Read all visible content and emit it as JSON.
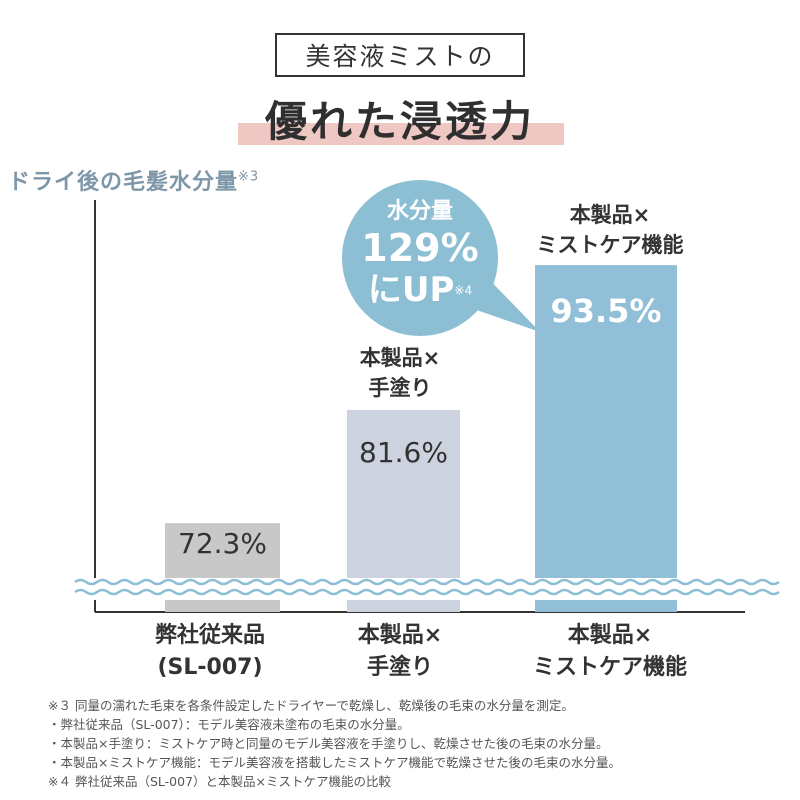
{
  "header": {
    "tag": "美容液ミストの",
    "headline": "優れた浸透力"
  },
  "axis": {
    "ylabel": "ドライ後の毛髪水分量",
    "ylabel_note": "※3"
  },
  "bubble": {
    "line1": "水分量",
    "line2": "129%",
    "line3": "にUP",
    "note": "※4",
    "color": "#8cbfd4"
  },
  "colors": {
    "bar1": "#c8c8c8",
    "bar2": "#cdd3de",
    "bar3": "#91bfd8",
    "wave": "#8cbfd4",
    "axis": "#333333",
    "underline": "#efc8c4"
  },
  "chart_data": {
    "type": "bar",
    "categories": [
      "弊社従来品 (SL-007)",
      "本製品×手塗り",
      "本製品×ミストケア機能"
    ],
    "values": [
      72.3,
      81.6,
      93.5
    ],
    "value_labels": [
      "72.3%",
      "81.6%",
      "93.5%"
    ],
    "ylabel": "ドライ後の毛髪水分量※3",
    "ylim": [
      65,
      100
    ],
    "grid": false,
    "bar_top_labels": [
      "",
      "本製品×\n手塗り",
      "本製品×\nミストケア機能"
    ]
  },
  "labels": {
    "bar2_top_1": "本製品×",
    "bar2_top_2": "手塗り",
    "bar3_top_1": "本製品×",
    "bar3_top_2": "ミストケア機能",
    "cat1_1": "弊社従来品",
    "cat1_2": "(SL-007)",
    "cat2_1": "本製品×",
    "cat2_2": "手塗り",
    "cat3_1": "本製品×",
    "cat3_2": "ミストケア機能"
  },
  "notes": [
    "※３ 同量の濡れた毛束を各条件設定したドライヤーで乾燥し、乾燥後の毛束の水分量を測定。",
    "・弊社従来品（SL-007）：モデル美容液未塗布の毛束の水分量。",
    "・本製品×手塗り：ミストケア時と同量のモデル美容液を手塗りし、乾燥させた後の毛束の水分量。",
    "・本製品×ミストケア機能：モデル美容液を搭載したミストケア機能で乾燥させた後の毛束の水分量。",
    "※４ 弊社従来品（SL-007）と本製品×ミストケア機能の比較"
  ]
}
